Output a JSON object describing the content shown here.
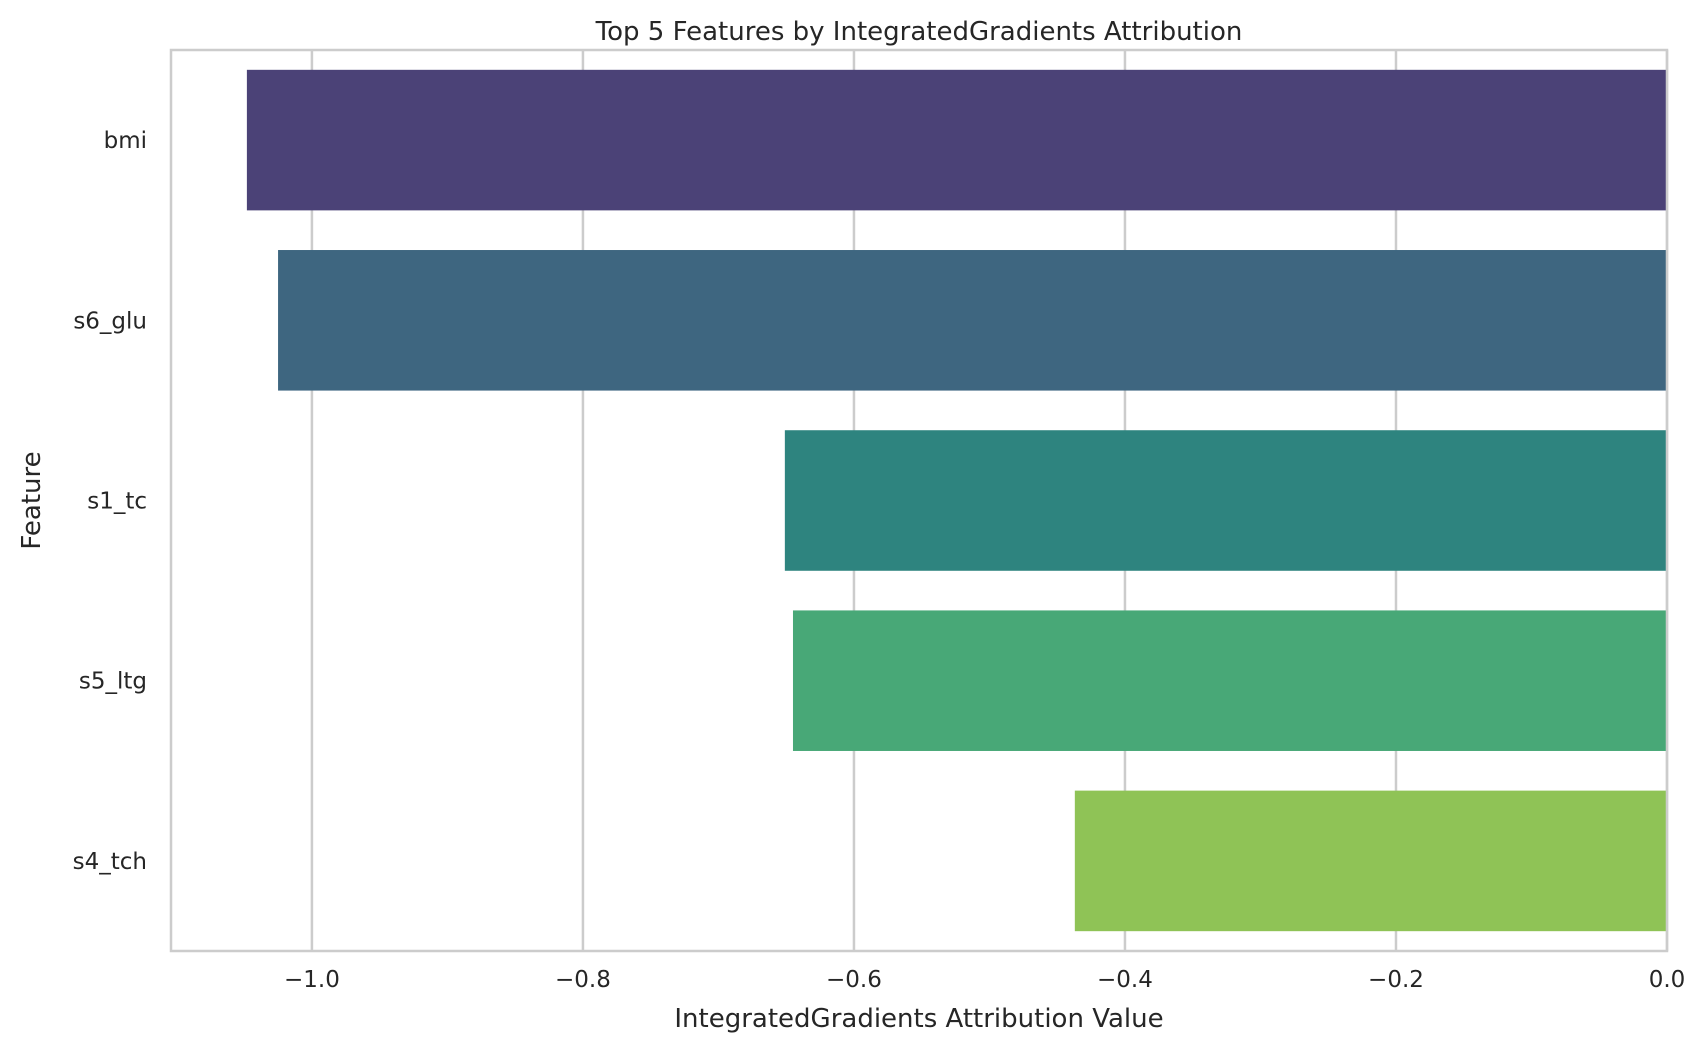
{
  "chart_data": {
    "type": "bar",
    "orientation": "horizontal",
    "title": "Top 5 Features by IntegratedGradients Attribution",
    "xlabel": "IntegratedGradients Attribution Value",
    "ylabel": "Feature",
    "categories": [
      "bmi",
      "s6_glu",
      "s1_tc",
      "s5_ltg",
      "s4_tch"
    ],
    "values": [
      -1.048,
      -1.025,
      -0.651,
      -0.645,
      -0.437
    ],
    "colors": [
      "#4b4277",
      "#3e6680",
      "#2e847f",
      "#48a877",
      "#8fc356"
    ],
    "xlim": [
      -1.104,
      0.0
    ],
    "xticks": [
      -1.0,
      -0.8,
      -0.6,
      -0.4,
      -0.2,
      0.0
    ],
    "xtick_labels": [
      "−1.0",
      "−0.8",
      "−0.6",
      "−0.4",
      "−0.2",
      "0.0"
    ],
    "grid": "vertical",
    "legend": "none"
  }
}
